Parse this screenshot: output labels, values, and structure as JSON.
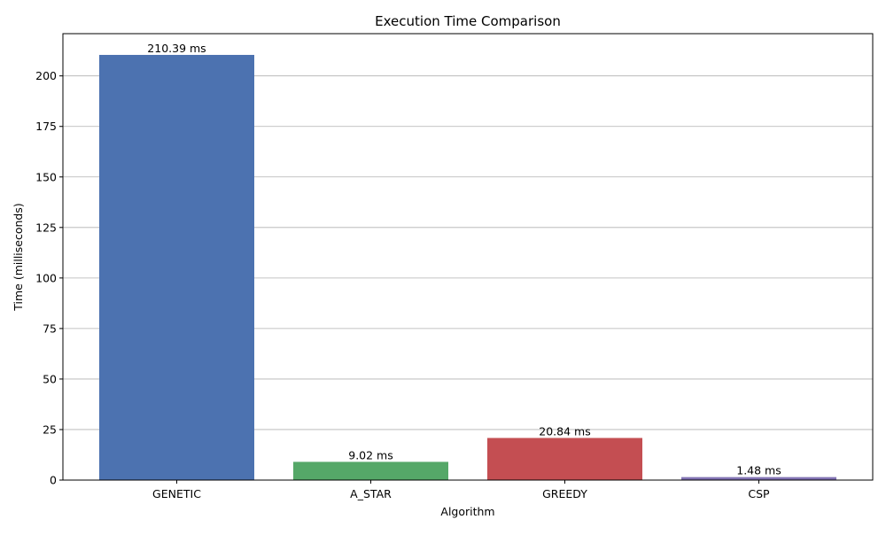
{
  "chart_data": {
    "type": "bar",
    "title": "Execution Time Comparison",
    "xlabel": "Algorithm",
    "ylabel": "Time (milliseconds)",
    "categories": [
      "GENETIC",
      "A_STAR",
      "GREEDY",
      "CSP"
    ],
    "values": [
      210.39,
      9.02,
      20.84,
      1.48
    ],
    "value_labels": [
      "210.39 ms",
      "9.02 ms",
      "20.84 ms",
      "1.48 ms"
    ],
    "ylim": [
      0,
      220.9
    ],
    "yticks": [
      0,
      25,
      50,
      75,
      100,
      125,
      150,
      175,
      200
    ],
    "grid": "horizontal",
    "colors": [
      "#4c72b0",
      "#55a868",
      "#c44e52",
      "#8172b2"
    ]
  }
}
